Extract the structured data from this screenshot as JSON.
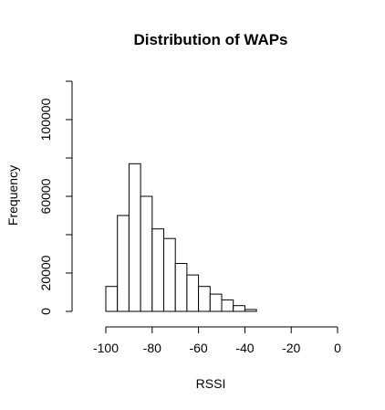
{
  "chart_data": {
    "type": "bar",
    "title": "Distribution of WAPs",
    "xlabel": "RSSI",
    "ylabel": "Frequency",
    "xlim": [
      -100,
      0
    ],
    "ylim": [
      0,
      120000
    ],
    "bin_width": 5,
    "bins": [
      {
        "x0": -105,
        "x1": -100,
        "count": 0
      },
      {
        "x0": -100,
        "x1": -95,
        "count": 13000
      },
      {
        "x0": -95,
        "x1": -90,
        "count": 50000
      },
      {
        "x0": -90,
        "x1": -85,
        "count": 77000
      },
      {
        "x0": -85,
        "x1": -80,
        "count": 60000
      },
      {
        "x0": -80,
        "x1": -75,
        "count": 43000
      },
      {
        "x0": -75,
        "x1": -70,
        "count": 38000
      },
      {
        "x0": -70,
        "x1": -65,
        "count": 25000
      },
      {
        "x0": -65,
        "x1": -60,
        "count": 19000
      },
      {
        "x0": -60,
        "x1": -55,
        "count": 13000
      },
      {
        "x0": -55,
        "x1": -50,
        "count": 9000
      },
      {
        "x0": -50,
        "x1": -45,
        "count": 6000
      },
      {
        "x0": -45,
        "x1": -40,
        "count": 3000
      },
      {
        "x0": -40,
        "x1": -35,
        "count": 1000
      },
      {
        "x0": -35,
        "x1": -30,
        "count": 0
      },
      {
        "x0": -30,
        "x1": -25,
        "count": 0
      },
      {
        "x0": -25,
        "x1": -20,
        "count": 0
      },
      {
        "x0": -20,
        "x1": -15,
        "count": 0
      },
      {
        "x0": -15,
        "x1": -10,
        "count": 0
      },
      {
        "x0": -10,
        "x1": -5,
        "count": 0
      },
      {
        "x0": -5,
        "x1": 0,
        "count": 0
      },
      {
        "x0": 0,
        "x1": 5,
        "count": 0
      }
    ],
    "x_ticks": [
      -100,
      -80,
      -60,
      -40,
      -20,
      0
    ],
    "x_tick_labels": [
      "-100",
      "-80",
      "-60",
      "-40",
      "-20",
      "0"
    ],
    "y_ticks": [
      0,
      20000,
      60000,
      100000
    ],
    "y_tick_labels": [
      "0",
      "20000",
      "60000",
      "100000"
    ],
    "grid": false,
    "legend": "none"
  }
}
